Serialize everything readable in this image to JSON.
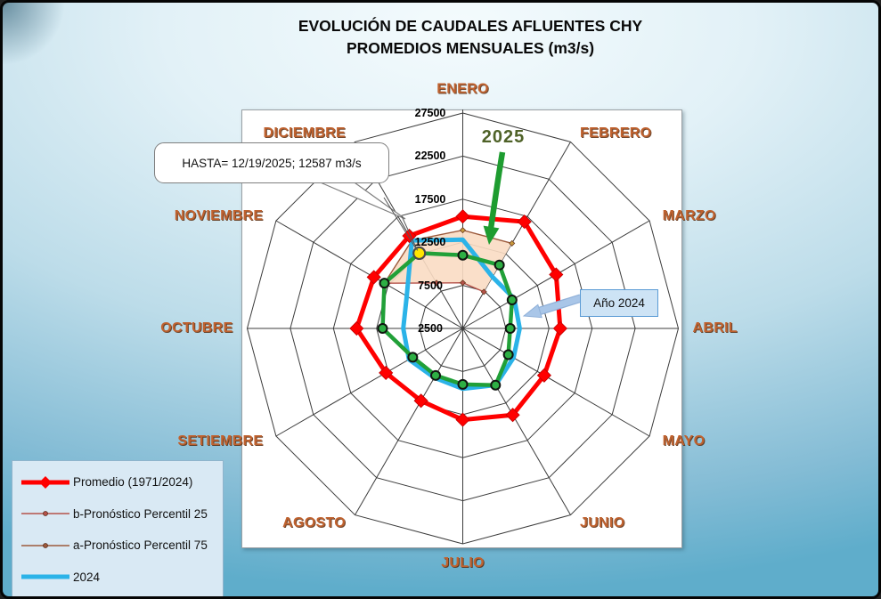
{
  "title": {
    "line1": "EVOLUCIÓN DE CAUDALES AFLUENTES CHY",
    "line2": "PROMEDIOS MENSUALES (m3/s)"
  },
  "chart_data": {
    "type": "radar",
    "title": "EVOLUCIÓN DE CAUDALES AFLUENTES CHY PROMEDIOS MENSUALES (m3/s)",
    "categories": [
      "ENERO",
      "FEBRERO",
      "MARZO",
      "ABRIL",
      "MAYO",
      "JUNIO",
      "JULIO",
      "AGOSTO",
      "SETIEMBRE",
      "OCTUBRE",
      "NOVIEMBRE",
      "DICIEMBRE"
    ],
    "axis": {
      "min": 2500,
      "max": 27500,
      "step": 5000,
      "tick_labels": [
        "2500",
        "7500",
        "12500",
        "17500",
        "22500",
        "27500"
      ],
      "unit": "m3/s"
    },
    "series": [
      {
        "name": "Promedio (1971/2024)",
        "color": "#FF0000",
        "style": "thick-diamond",
        "values": [
          15500,
          16800,
          15000,
          13800,
          13400,
          14100,
          13100,
          12200,
          12800,
          14800,
          14400,
          14900
        ]
      },
      {
        "name": "b-Pronóstico Percentil 25",
        "color": "#B5524A",
        "style": "thin-small-marker",
        "values": [
          7800,
          7400,
          null,
          null,
          null,
          null,
          null,
          null,
          null,
          null,
          13000,
          8600
        ]
      },
      {
        "name": "a-Pronóstico Percentil 75",
        "color": "#9C5A3C",
        "style": "thin-small-marker",
        "values": [
          13900,
          13900,
          null,
          null,
          null,
          null,
          null,
          null,
          null,
          null,
          13000,
          14300
        ]
      },
      {
        "name": "2024",
        "color": "#2BB3E8",
        "style": "thick",
        "values": [
          12800,
          9400,
          9400,
          9100,
          9300,
          10100,
          9500,
          9100,
          9700,
          9400,
          10000,
          14300
        ]
      },
      {
        "name": "2025",
        "color": "#21A038",
        "style": "thick-circle-marker",
        "values": [
          11000,
          11000,
          9100,
          8000,
          8600,
          10100,
          9000,
          8800,
          9200,
          11800,
          13000,
          12587
        ]
      }
    ],
    "band": {
      "between": [
        "a-Pronóstico Percentil 75",
        "b-Pronóstico Percentil 25"
      ],
      "fill": "#F9DCC3"
    },
    "highlight_point": {
      "series": "2025",
      "category": "DICIEMBRE",
      "value": 12587,
      "marker": "yellow-circle"
    },
    "legend_position": "bottom-left",
    "grid": true
  },
  "annotations": {
    "callout": {
      "text": "HASTA= 12/19/2025; 12587 m3/s"
    },
    "year_label": {
      "text": "2025",
      "color": "#4F6228"
    },
    "box_label": {
      "text": "Año 2024"
    }
  },
  "legend": {
    "items": [
      {
        "label": "Promedio (1971/2024)",
        "swatch": "thick-red-diamond",
        "color": "#FF0000"
      },
      {
        "label": "b-Pronóstico Percentil 25",
        "swatch": "thin-line-dot",
        "color": "#B5524A"
      },
      {
        "label": "a-Pronóstico Percentil 75",
        "swatch": "thin-line-dot",
        "color": "#9C5A3C"
      },
      {
        "label": "2024",
        "swatch": "thick-line",
        "color": "#2BB3E8"
      }
    ]
  }
}
